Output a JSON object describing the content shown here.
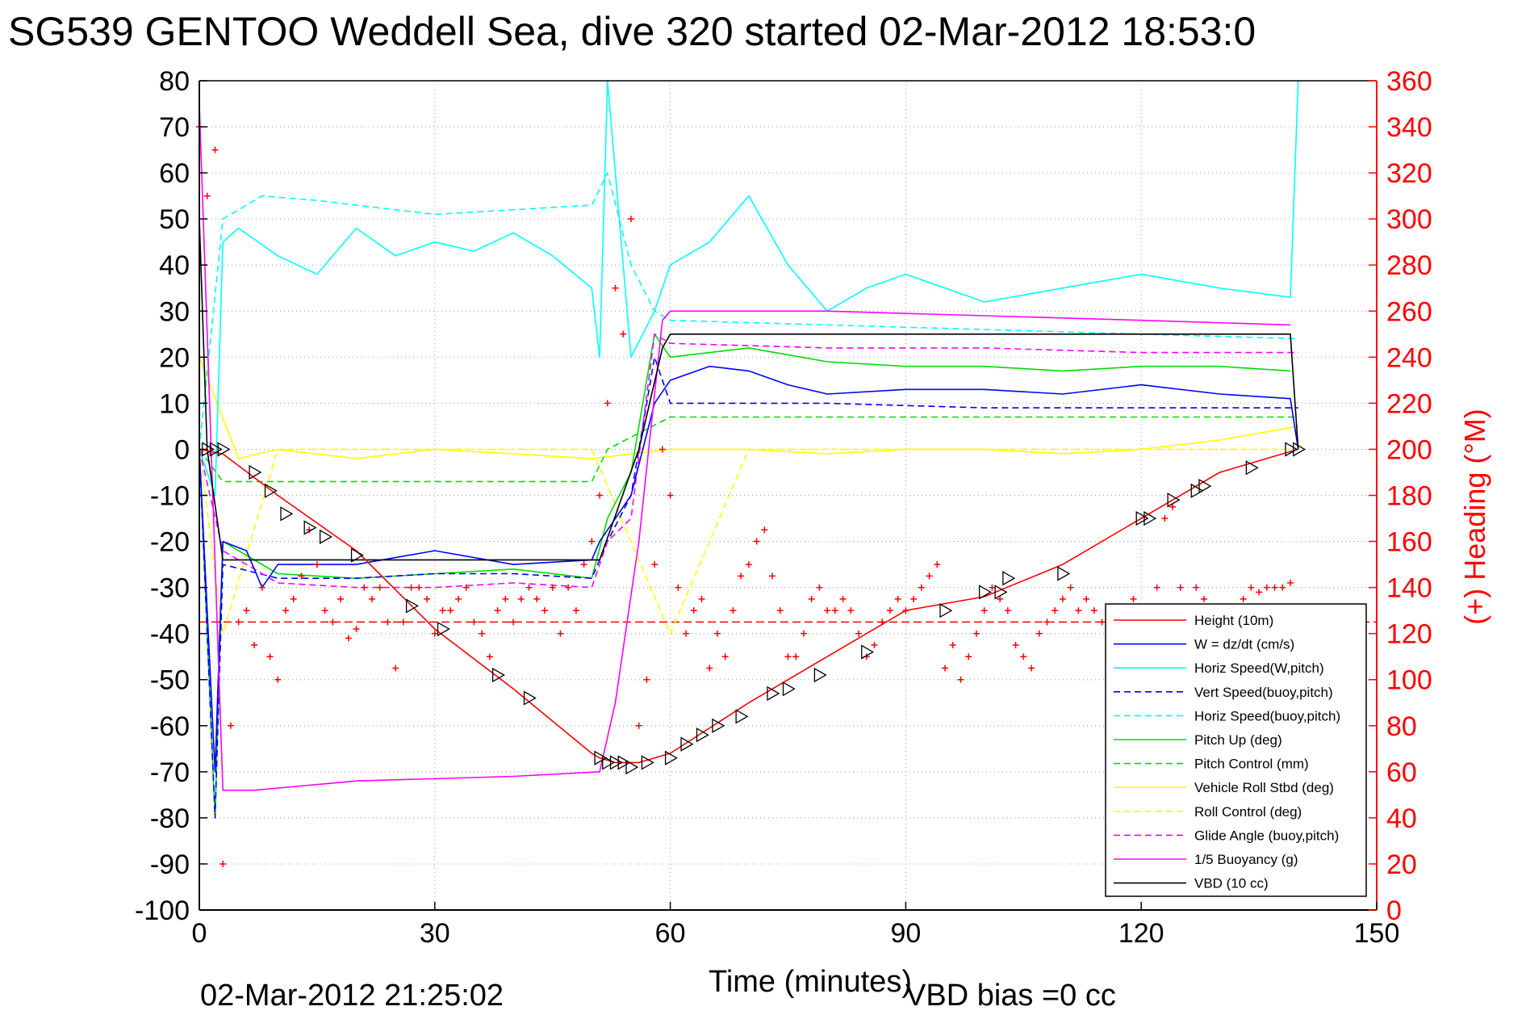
{
  "title": "SG539 GENTOO Weddell Sea, dive 320 started 02-Mar-2012 18:53:0",
  "footer": {
    "timestamp": "02-Mar-2012 21:25:02",
    "vbd_bias": "VBD bias =0 cc"
  },
  "chart_data": {
    "type": "line",
    "xlabel": "Time (minutes)",
    "ylabel_right": "(+) Heading (°M)",
    "xlim": [
      0,
      150
    ],
    "ylim_left": [
      -100,
      80
    ],
    "ylim_right": [
      0,
      360
    ],
    "x_ticks": [
      "0",
      "30",
      "60",
      "90",
      "120",
      "150"
    ],
    "y_ticks_left": [
      "80",
      "70",
      "60",
      "50",
      "40",
      "30",
      "20",
      "10",
      "0",
      "-10",
      "-20",
      "-30",
      "-40",
      "-50",
      "-60",
      "-70",
      "-80",
      "-90",
      "-100"
    ],
    "y_ticks_right": [
      "360",
      "340",
      "320",
      "300",
      "280",
      "260",
      "240",
      "220",
      "200",
      "180",
      "160",
      "140",
      "120",
      "100",
      "80",
      "60",
      "40",
      "20",
      "0"
    ],
    "grid": true,
    "legend_position": "bottom-right",
    "colors": {
      "height": "#ff0000",
      "w": "#0000ff",
      "horiz_w": "#00ffff",
      "vert_buoy": "#0000ff",
      "horiz_buoy": "#00ffff",
      "pitch": "#00dd00",
      "pitch_ctrl": "#00dd00",
      "roll": "#ffff00",
      "roll_ctrl": "#ffff00",
      "glide": "#ff00ff",
      "buoy": "#ff00ff",
      "vbd": "#000000",
      "heading": "#ff0000"
    },
    "series": [
      {
        "key": "height",
        "name": "Height (10m)",
        "style": "solid",
        "x": [
          0,
          3,
          10,
          20,
          30,
          40,
          50,
          51,
          53,
          56,
          60,
          70,
          80,
          90,
          100,
          110,
          120,
          130,
          140
        ],
        "y": [
          0,
          -1,
          -10,
          -22,
          -39,
          -52,
          -66,
          -67,
          -68,
          -68,
          -66,
          -55,
          -45,
          -35,
          -32,
          -25,
          -15,
          -5,
          0
        ]
      },
      {
        "key": "w",
        "name": "W = dz/dt (cm/s)",
        "style": "solid",
        "x": [
          0,
          2,
          3,
          6,
          8,
          10,
          20,
          30,
          40,
          50,
          51,
          55,
          58,
          60,
          65,
          70,
          75,
          80,
          90,
          100,
          110,
          120,
          130,
          139,
          140
        ],
        "y": [
          0,
          -70,
          -20,
          -22,
          -30,
          -25,
          -25,
          -22,
          -25,
          -24,
          -20,
          -10,
          10,
          15,
          18,
          17,
          14,
          12,
          13,
          13,
          12,
          14,
          12,
          11,
          0
        ]
      },
      {
        "key": "horiz_w",
        "name": "Horiz Speed(W,pitch)",
        "style": "solid",
        "x": [
          0,
          2,
          3,
          5,
          10,
          15,
          20,
          25,
          30,
          35,
          40,
          45,
          50,
          51,
          52,
          55,
          58,
          60,
          65,
          70,
          75,
          80,
          85,
          90,
          100,
          110,
          120,
          130,
          139,
          140
        ],
        "y": [
          0,
          -10,
          45,
          48,
          42,
          38,
          48,
          42,
          45,
          43,
          47,
          42,
          35,
          20,
          80,
          20,
          30,
          40,
          45,
          55,
          40,
          30,
          35,
          38,
          32,
          35,
          38,
          35,
          33,
          80
        ]
      },
      {
        "key": "vert_buoy",
        "name": "Vert Speed(buoy,pitch)",
        "style": "dashed",
        "x": [
          0,
          2,
          3,
          10,
          20,
          30,
          40,
          50,
          52,
          55,
          58,
          60,
          80,
          100,
          120,
          140
        ],
        "y": [
          0,
          -80,
          -25,
          -28,
          -28,
          -27,
          -27,
          -28,
          -20,
          -10,
          20,
          10,
          10,
          9,
          9,
          9
        ]
      },
      {
        "key": "horiz_buoy",
        "name": "Horiz Speed(buoy,pitch)",
        "style": "dashed",
        "x": [
          0,
          3,
          5,
          8,
          15,
          20,
          25,
          30,
          40,
          50,
          52,
          55,
          58,
          60,
          80,
          100,
          120,
          140
        ],
        "y": [
          0,
          50,
          52,
          55,
          54,
          53,
          52,
          51,
          52,
          53,
          60,
          40,
          30,
          28,
          27,
          26,
          25,
          24
        ]
      },
      {
        "key": "pitch",
        "name": "Pitch Up (deg)",
        "style": "solid",
        "x": [
          0,
          2,
          3,
          10,
          20,
          30,
          40,
          50,
          52,
          55,
          58,
          60,
          70,
          80,
          90,
          100,
          110,
          120,
          130,
          139
        ],
        "y": [
          0,
          -80,
          -20,
          -27,
          -28,
          -27,
          -26,
          -28,
          -15,
          -5,
          25,
          20,
          22,
          19,
          18,
          18,
          17,
          18,
          18,
          17
        ]
      },
      {
        "key": "pitch_ctrl",
        "name": "Pitch Control (mm)",
        "style": "dashed",
        "x": [
          0,
          3,
          10,
          20,
          30,
          40,
          50,
          52,
          60,
          80,
          100,
          120,
          140
        ],
        "y": [
          0,
          -7,
          -7,
          -7,
          -7,
          -7,
          -7,
          0,
          7,
          7,
          7,
          7,
          7
        ]
      },
      {
        "key": "roll",
        "name": "Vehicle Roll Stbd (deg)",
        "style": "solid",
        "x": [
          0,
          5,
          10,
          20,
          30,
          40,
          50,
          60,
          70,
          80,
          90,
          100,
          110,
          120,
          130,
          140
        ],
        "y": [
          20,
          -2,
          0,
          -2,
          0,
          -1,
          -2,
          0,
          0,
          -1,
          0,
          0,
          -1,
          0,
          2,
          5
        ]
      },
      {
        "key": "roll_ctrl",
        "name": "Roll Control (deg)",
        "style": "dashed",
        "x": [
          0,
          3,
          10,
          20,
          30,
          40,
          50,
          60,
          70,
          80,
          90,
          100,
          110,
          120,
          130,
          140
        ],
        "y": [
          0,
          -40,
          0,
          0,
          0,
          0,
          0,
          -40,
          0,
          0,
          0,
          0,
          0,
          0,
          0,
          0
        ]
      },
      {
        "key": "glide",
        "name": "Glide Angle (buoy,pitch)",
        "style": "dashed",
        "x": [
          0,
          3,
          10,
          20,
          30,
          40,
          50,
          52,
          55,
          58,
          60,
          80,
          100,
          120,
          140
        ],
        "y": [
          0,
          -22,
          -29,
          -30,
          -30,
          -29,
          -30,
          -20,
          -15,
          25,
          23,
          22,
          22,
          21,
          21
        ]
      },
      {
        "key": "buoy",
        "name": "1/5 Buoyancy (g)",
        "style": "solid",
        "x": [
          0,
          3,
          7,
          20,
          40,
          51,
          53,
          56,
          59,
          60,
          80,
          100,
          120,
          139
        ],
        "y": [
          75,
          -74,
          -74,
          -72,
          -71,
          -70,
          -55,
          -20,
          28,
          30,
          30,
          29,
          28,
          27
        ]
      },
      {
        "key": "vbd",
        "name": "VBD (10 cc)",
        "style": "solid",
        "x": [
          0,
          1,
          3,
          20,
          40,
          51,
          56,
          59,
          60,
          80,
          100,
          120,
          139,
          140
        ],
        "y": [
          50,
          0,
          -24,
          -24,
          -24,
          -24,
          0,
          22,
          25,
          25,
          25,
          25,
          25,
          0
        ]
      }
    ],
    "heading": {
      "name": "(+) Heading (°M)",
      "axis": "right",
      "mean": 125,
      "x": [
        0,
        1,
        2,
        3,
        4,
        5,
        6,
        7,
        8,
        9,
        10,
        11,
        12,
        13,
        14,
        15,
        16,
        17,
        18,
        19,
        20,
        21,
        22,
        23,
        24,
        25,
        26,
        27,
        28,
        29,
        30,
        31,
        32,
        33,
        34,
        35,
        36,
        37,
        38,
        39,
        40,
        41,
        42,
        43,
        44,
        45,
        46,
        47,
        48,
        49,
        50,
        51,
        52,
        53,
        54,
        55,
        56,
        57,
        58,
        59,
        60,
        61,
        62,
        63,
        64,
        65,
        66,
        67,
        68,
        69,
        70,
        71,
        72,
        73,
        74,
        75,
        76,
        77,
        78,
        79,
        80,
        81,
        82,
        83,
        84,
        85,
        86,
        87,
        88,
        89,
        90,
        91,
        92,
        93,
        94,
        95,
        96,
        97,
        98,
        99,
        100,
        101,
        102,
        103,
        104,
        105,
        106,
        107,
        108,
        109,
        110,
        111,
        112,
        113,
        114,
        115,
        116,
        117,
        118,
        119,
        120,
        121,
        122,
        123,
        124,
        125,
        126,
        127,
        128,
        129,
        130,
        131,
        132,
        133,
        134,
        135,
        136,
        137,
        138,
        139
      ],
      "y": [
        340,
        310,
        330,
        20,
        80,
        125,
        130,
        115,
        140,
        110,
        100,
        130,
        135,
        145,
        165,
        150,
        130,
        125,
        135,
        118,
        122,
        140,
        135,
        140,
        125,
        105,
        125,
        140,
        140,
        135,
        120,
        130,
        130,
        135,
        140,
        125,
        120,
        110,
        130,
        135,
        125,
        135,
        140,
        135,
        130,
        140,
        120,
        140,
        130,
        150,
        160,
        180,
        220,
        270,
        250,
        300,
        80,
        100,
        150,
        200,
        180,
        140,
        120,
        130,
        135,
        105,
        120,
        110,
        130,
        145,
        150,
        160,
        165,
        145,
        130,
        110,
        110,
        120,
        135,
        140,
        130,
        130,
        135,
        130,
        120,
        110,
        115,
        125,
        130,
        135,
        130,
        135,
        140,
        145,
        150,
        105,
        115,
        100,
        110,
        120,
        130,
        140,
        135,
        130,
        115,
        110,
        105,
        120,
        125,
        130,
        135,
        140,
        130,
        135,
        130,
        125,
        130,
        125,
        130,
        135,
        115,
        125,
        140,
        170,
        175,
        140,
        115,
        140,
        135,
        130,
        125,
        130,
        130,
        135,
        140,
        138,
        140,
        140,
        140,
        142
      ]
    },
    "markers": {
      "name": "VBD ops",
      "x": [
        1,
        2,
        3,
        7,
        9,
        11,
        14,
        16,
        20,
        27,
        31,
        38,
        42,
        51,
        52,
        53,
        54,
        55,
        57,
        60,
        62,
        64,
        66,
        69,
        73,
        75,
        79,
        85,
        95,
        100,
        102,
        103,
        110,
        120,
        121,
        124,
        127,
        128,
        134,
        139,
        140
      ],
      "y": [
        0,
        0,
        0,
        -5,
        -9,
        -14,
        -17,
        -19,
        -23,
        -34,
        -39,
        -49,
        -54,
        -67,
        -68,
        -68,
        -68,
        -69,
        -68,
        -67,
        -64,
        -62,
        -60,
        -58,
        -53,
        -52,
        -49,
        -44,
        -35,
        -31,
        -31,
        -28,
        -27,
        -15,
        -15,
        -11,
        -9,
        -8,
        -4,
        0,
        0
      ]
    }
  }
}
